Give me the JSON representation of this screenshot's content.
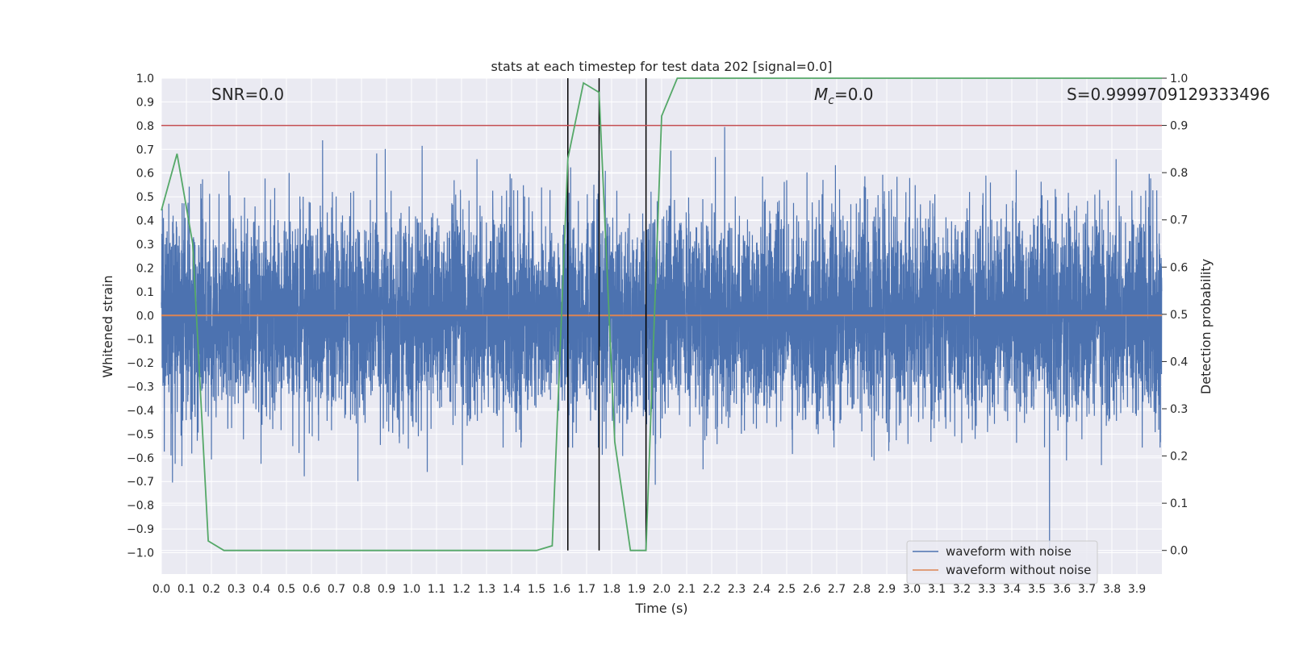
{
  "chart_data": {
    "type": "line",
    "title": "stats at each timestep for test data 202 [signal=0.0]",
    "xlabel": "Time (s)",
    "ylabel": "Whitened strain",
    "y2label": "Detection probability",
    "xlim": [
      0.0,
      4.0
    ],
    "ylim": [
      -1.09,
      1.0
    ],
    "y2lim": [
      -0.05,
      1.0
    ],
    "grid": true,
    "x_ticks": [
      0.0,
      0.1,
      0.2,
      0.3,
      0.4,
      0.5,
      0.6,
      0.7,
      0.8,
      0.9,
      1.0,
      1.1,
      1.2,
      1.3,
      1.4,
      1.5,
      1.6,
      1.7,
      1.8,
      1.9,
      2.0,
      2.1,
      2.2,
      2.3,
      2.4,
      2.5,
      2.6,
      2.7,
      2.8,
      2.9,
      3.0,
      3.1,
      3.2,
      3.3,
      3.4,
      3.5,
      3.6,
      3.7,
      3.8,
      3.9
    ],
    "y_ticks": [
      -1.0,
      -0.9,
      -0.8,
      -0.7,
      -0.6,
      -0.5,
      -0.4,
      -0.3,
      -0.2,
      -0.1,
      0.0,
      0.1,
      0.2,
      0.3,
      0.4,
      0.5,
      0.6,
      0.7,
      0.8,
      0.9,
      1.0
    ],
    "y2_ticks": [
      0.0,
      0.1,
      0.2,
      0.3,
      0.4,
      0.5,
      0.6,
      0.7,
      0.8,
      0.9,
      1.0
    ],
    "annotations": {
      "snr": "SNR=0.0",
      "mc_symbol": "M",
      "mc_subscript": "c",
      "mc_value": "=0.0",
      "s": "S=0.9999709129333496"
    },
    "series": [
      {
        "name": "waveform with noise",
        "color": "#4c72b0",
        "axis": "left",
        "kind": "noise",
        "sample_rate": 2048,
        "envelope": 0.5,
        "approx_range": [
          -1.0,
          0.92
        ]
      },
      {
        "name": "waveform without noise",
        "color": "#dd8452",
        "axis": "left",
        "x": [
          0.0,
          4.0
        ],
        "y": [
          0.0,
          0.0
        ]
      },
      {
        "name": "detection probability",
        "color": "#55a868",
        "axis": "right",
        "x": [
          0.0,
          0.0625,
          0.125,
          0.1875,
          0.25,
          0.3125,
          0.375,
          1.4375,
          1.5,
          1.5625,
          1.625,
          1.6875,
          1.75,
          1.8125,
          1.875,
          1.9375,
          2.0,
          2.0625,
          2.125,
          2.5,
          3.0,
          3.5,
          4.0
        ],
        "y": [
          0.72,
          0.84,
          0.65,
          0.02,
          0.0,
          0.0,
          0.0,
          0.0,
          0.0,
          0.01,
          0.83,
          0.99,
          0.97,
          0.23,
          0.0,
          0.0,
          0.92,
          1.0,
          1.0,
          1.0,
          1.0,
          1.0,
          1.0
        ]
      }
    ],
    "threshold_line": {
      "axis": "right",
      "y": 0.9,
      "color": "#c44e52"
    },
    "vertical_lines": [
      1.625,
      1.75,
      1.9375
    ],
    "legend": {
      "placement": "lower right",
      "entries": [
        {
          "label": "waveform with noise",
          "color": "#4c72b0"
        },
        {
          "label": "waveform without noise",
          "color": "#dd8452"
        }
      ]
    }
  }
}
